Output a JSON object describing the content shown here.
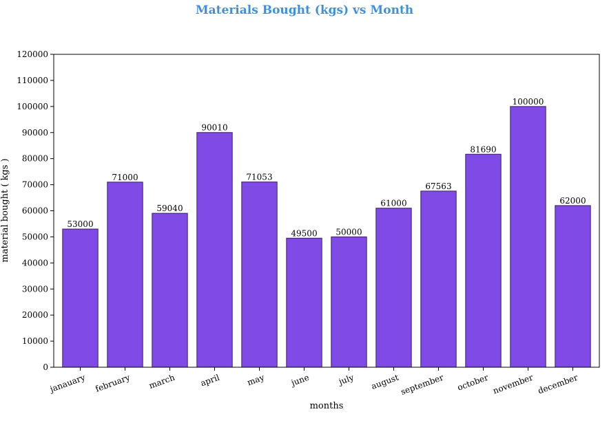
{
  "chart_data": {
    "type": "bar",
    "title": "Materials Bought (kgs) vs Month",
    "xlabel": "months",
    "ylabel": "material bought ( kgs )",
    "categories": [
      "janauary",
      "february",
      "march",
      "april",
      "may",
      "june",
      "july",
      "august",
      "september",
      "october",
      "november",
      "december"
    ],
    "values": [
      53000,
      71000,
      59040,
      90010,
      71053,
      49500,
      50000,
      61000,
      67563,
      81690,
      100000,
      62000
    ],
    "data_labels": [
      "53000",
      "71000",
      "59040",
      "90010",
      "71053",
      "49500",
      "50000",
      "61000",
      "67563",
      "81690",
      "100000",
      "62000"
    ],
    "ylim": [
      0,
      120000
    ],
    "yticks": [
      0,
      10000,
      20000,
      30000,
      40000,
      50000,
      60000,
      70000,
      80000,
      90000,
      100000,
      110000,
      120000
    ],
    "grid": false,
    "legend": "none"
  },
  "colors": {
    "bar_fill": "#7f4ae6",
    "bar_edge": "#3a1f66",
    "title": "#3d8fe0",
    "axis": "#000000"
  }
}
